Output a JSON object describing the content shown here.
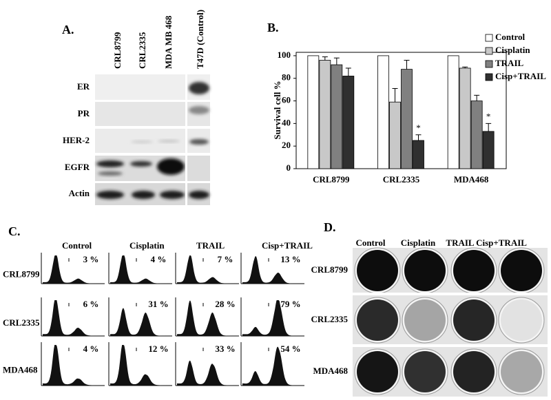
{
  "panel_a": {
    "label": "A.",
    "columns": [
      "CRL8799",
      "CRL2335",
      "MDA MB 468",
      "T47D (Control)"
    ],
    "rows": [
      "ER",
      "PR",
      "HER-2",
      "EGFR",
      "Actin"
    ]
  },
  "chart_data": {
    "type": "bar",
    "label": "B.",
    "y_label": "Survival cell %",
    "categories": [
      "CRL8799",
      "CRL2335",
      "MDA468"
    ],
    "series": [
      {
        "name": "Control",
        "color": "#ffffff",
        "values": [
          100,
          100,
          100
        ]
      },
      {
        "name": "Cisplatin",
        "color": "#c8c8c8",
        "values": [
          96,
          59,
          89
        ],
        "errors": [
          3,
          12,
          1
        ]
      },
      {
        "name": "TRAIL",
        "color": "#808080",
        "values": [
          92,
          88,
          60
        ],
        "errors": [
          6,
          8,
          5
        ]
      },
      {
        "name": "Cisp+TRAIL",
        "color": "#303030",
        "values": [
          82,
          25,
          33
        ],
        "errors": [
          7,
          5,
          7
        ]
      }
    ],
    "annotations": [
      {
        "text": "*",
        "category": "CRL2335",
        "series": "Cisp+TRAIL"
      },
      {
        "text": "*",
        "category": "MDA468",
        "series": "Cisp+TRAIL"
      }
    ],
    "ylim": [
      0,
      103
    ],
    "yticks": [
      0,
      20,
      40,
      60,
      80,
      100
    ],
    "legend": "upper right"
  },
  "panel_c": {
    "label": "C.",
    "columns": [
      "Control",
      "Cisplatin",
      "TRAIL",
      "Cisp+TRAIL"
    ],
    "rows": [
      "CRL8799",
      "CRL2335",
      "MDA468"
    ],
    "percentages": [
      [
        "3 %",
        "4 %",
        "7 %",
        "13 %"
      ],
      [
        "6 %",
        "31 %",
        "28 %",
        "79 %"
      ],
      [
        "4 %",
        "12 %",
        "33 %",
        "54 %"
      ]
    ]
  },
  "panel_d": {
    "label": "D.",
    "columns": [
      "Control",
      "Cisplatin",
      "TRAIL",
      "Cisp+TRAIL"
    ],
    "rows": [
      "CRL8799",
      "CRL2335",
      "MDA468"
    ]
  }
}
